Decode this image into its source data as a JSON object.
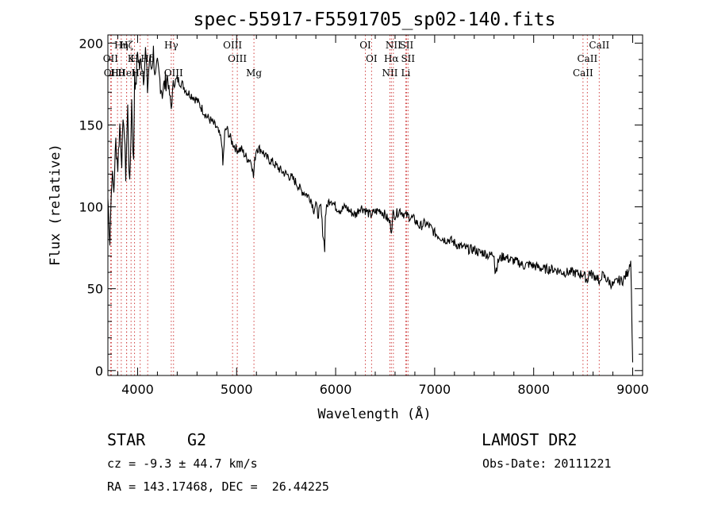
{
  "chart_data": {
    "type": "line",
    "title": "spec-55917-F5591705_sp02-140.fits",
    "xlabel": "Wavelength (Å)",
    "ylabel": "Flux (relative)",
    "xlim": [
      3700,
      9100
    ],
    "ylim": [
      -3,
      205
    ],
    "xticks": [
      4000,
      5000,
      6000,
      7000,
      8000,
      9000
    ],
    "yticks": [
      0,
      50,
      100,
      150,
      200
    ],
    "grid": false,
    "line_color": "#000000",
    "marker_color": "#d04040",
    "spectrum": {
      "x": [
        3700,
        3720,
        3740,
        3760,
        3780,
        3800,
        3820,
        3840,
        3860,
        3880,
        3900,
        3920,
        3940,
        3960,
        3970,
        3980,
        4000,
        4020,
        4040,
        4060,
        4080,
        4100,
        4120,
        4140,
        4160,
        4180,
        4200,
        4250,
        4300,
        4340,
        4360,
        4400,
        4450,
        4500,
        4550,
        4600,
        4650,
        4700,
        4750,
        4800,
        4850,
        4861,
        4880,
        4900,
        4950,
        5000,
        5050,
        5100,
        5150,
        5170,
        5183,
        5200,
        5250,
        5300,
        5350,
        5400,
        5450,
        5500,
        5550,
        5600,
        5650,
        5700,
        5750,
        5780,
        5800,
        5820,
        5850,
        5870,
        5890,
        5896,
        5920,
        5950,
        6000,
        6050,
        6100,
        6150,
        6200,
        6250,
        6300,
        6350,
        6400,
        6450,
        6500,
        6550,
        6563,
        6580,
        6600,
        6650,
        6700,
        6750,
        6800,
        6850,
        6900,
        6950,
        7000,
        7050,
        7100,
        7150,
        7200,
        7250,
        7300,
        7350,
        7400,
        7450,
        7500,
        7550,
        7600,
        7610,
        7650,
        7700,
        7750,
        7800,
        7850,
        7900,
        7950,
        8000,
        8050,
        8100,
        8150,
        8200,
        8250,
        8300,
        8350,
        8400,
        8450,
        8500,
        8542,
        8560,
        8600,
        8650,
        8662,
        8680,
        8700,
        8750,
        8800,
        8850,
        8900,
        8950,
        8980,
        9000
      ],
      "y": [
        105,
        80,
        120,
        110,
        140,
        125,
        150,
        130,
        155,
        120,
        160,
        110,
        165,
        125,
        185,
        170,
        195,
        185,
        190,
        180,
        195,
        172,
        190,
        185,
        195,
        178,
        185,
        170,
        180,
        160,
        175,
        178,
        175,
        170,
        168,
        165,
        160,
        155,
        152,
        148,
        140,
        125,
        145,
        148,
        140,
        135,
        135,
        130,
        128,
        118,
        128,
        136,
        135,
        130,
        128,
        125,
        122,
        120,
        118,
        115,
        110,
        108,
        105,
        98,
        102,
        95,
        100,
        85,
        75,
        95,
        102,
        105,
        100,
        98,
        100,
        97,
        95,
        100,
        98,
        95,
        97,
        98,
        95,
        90,
        86,
        96,
        95,
        98,
        95,
        94,
        92,
        88,
        90,
        88,
        84,
        82,
        80,
        80,
        78,
        76,
        75,
        74,
        74,
        72,
        72,
        70,
        72,
        60,
        68,
        70,
        68,
        67,
        66,
        64,
        65,
        64,
        63,
        62,
        62,
        62,
        61,
        60,
        60,
        60,
        59,
        59,
        55,
        60,
        58,
        57,
        50,
        58,
        58,
        55,
        52,
        55,
        55,
        60,
        68,
        5
      ]
    },
    "line_markers": [
      {
        "wavelength": 3727,
        "label": "OII",
        "row": 1
      },
      {
        "wavelength": 3735,
        "label": "OII",
        "row": 2
      },
      {
        "wavelength": 3797,
        "label": "Hθ",
        "row": 2
      },
      {
        "wavelength": 3835,
        "label": "Hη",
        "row": 0
      },
      {
        "wavelength": 3889,
        "label": "Hζ",
        "row": 0
      },
      {
        "wavelength": 3934,
        "label": "K",
        "row": 1
      },
      {
        "wavelength": 3969,
        "label": "H",
        "row": 1
      },
      {
        "wavelength": 3889,
        "label": "HeI",
        "row": 2
      },
      {
        "wavelength": 4026,
        "label": "HeI",
        "row": 2
      },
      {
        "wavelength": 4102,
        "label": "Hδ",
        "row": 1
      },
      {
        "wavelength": 4340,
        "label": "Hγ",
        "row": 0
      },
      {
        "wavelength": 4363,
        "label": "OIII",
        "row": 2
      },
      {
        "wavelength": 4959,
        "label": "OIII",
        "row": 0
      },
      {
        "wavelength": 5007,
        "label": "OIII",
        "row": 1
      },
      {
        "wavelength": 5175,
        "label": "Mg",
        "row": 2
      },
      {
        "wavelength": 6300,
        "label": "OI",
        "row": 0
      },
      {
        "wavelength": 6363,
        "label": "OI",
        "row": 1
      },
      {
        "wavelength": 6548,
        "label": "NII",
        "row": 2
      },
      {
        "wavelength": 6563,
        "label": "Hα",
        "row": 1
      },
      {
        "wavelength": 6583,
        "label": "NII",
        "row": 0
      },
      {
        "wavelength": 6708,
        "label": "Li",
        "row": 2
      },
      {
        "wavelength": 6716,
        "label": "SII",
        "row": 0
      },
      {
        "wavelength": 6731,
        "label": "SII",
        "row": 1
      },
      {
        "wavelength": 8498,
        "label": "CaII",
        "row": 2
      },
      {
        "wavelength": 8542,
        "label": "CaII",
        "row": 1
      },
      {
        "wavelength": 8662,
        "label": "CaII",
        "row": 0
      }
    ]
  },
  "info": {
    "object_class": "STAR",
    "subclass": "G2",
    "survey": "LAMOST DR2",
    "redshift_line": "cz = -9.3 ± 44.7 km/s",
    "obs_date_line": "Obs-Date: 20111221",
    "coords_line": "RA = 143.17468, DEC =  26.44225"
  }
}
